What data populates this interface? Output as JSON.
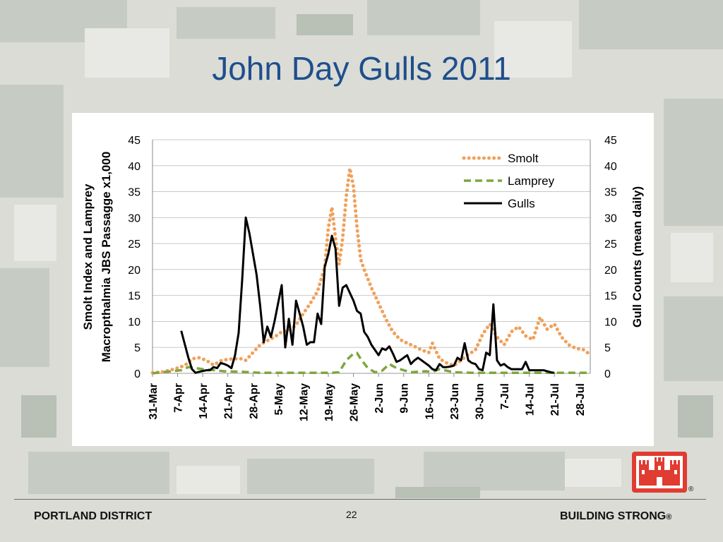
{
  "slide": {
    "title": "John Day Gulls 2011",
    "page_number": "22",
    "footer_left": "PORTLAND DISTRICT",
    "footer_right": "BUILDING STRONG",
    "registered_mark": "®",
    "logo_icon": "castle-icon",
    "colors": {
      "title": "#1f4e8c",
      "logo": "#e03c31"
    }
  },
  "chart_data": {
    "type": "line",
    "title": "",
    "ylabel_left_line1": "Smolt Index  and Lamprey",
    "ylabel_left_line2": "Macropthalmia JBS Passagge x1,000",
    "ylabel_right": "Gull Counts (mean daily)",
    "xlabel": "",
    "x_tick_labels": [
      "31-Mar",
      "7-Apr",
      "14-Apr",
      "21-Apr",
      "28-Apr",
      "5-May",
      "12-May",
      "19-May",
      "26-May",
      "2-Jun",
      "9-Jun",
      "16-Jun",
      "23-Jun",
      "30-Jun",
      "7-Jul",
      "14-Jul",
      "21-Jul",
      "28-Jul"
    ],
    "y_left_ticks": [
      0,
      5,
      10,
      15,
      20,
      25,
      30,
      35,
      40,
      45
    ],
    "y_right_ticks": [
      0,
      5,
      10,
      15,
      20,
      25,
      30,
      35,
      40,
      45
    ],
    "ylim_left": [
      0,
      45
    ],
    "ylim_right": [
      0,
      45
    ],
    "x_axis": "day index, 0 = 31-Mar",
    "xlim": [
      0,
      122
    ],
    "grid": true,
    "legend_position": "top-right",
    "series": [
      {
        "name": "Smolt",
        "axis": "left",
        "style": "dotted",
        "color": "#f0a15b",
        "points": [
          [
            0,
            0.1
          ],
          [
            3,
            0.3
          ],
          [
            6,
            0.8
          ],
          [
            9,
            1.5
          ],
          [
            11,
            2.8
          ],
          [
            13,
            3.0
          ],
          [
            15,
            2.5
          ],
          [
            17,
            1.6
          ],
          [
            19,
            2.4
          ],
          [
            21,
            2.7
          ],
          [
            23,
            2.8
          ],
          [
            25,
            2.8
          ],
          [
            26,
            2.5
          ],
          [
            28,
            4.0
          ],
          [
            30,
            5.5
          ],
          [
            32,
            6.3
          ],
          [
            34,
            7.0
          ],
          [
            36,
            8.0
          ],
          [
            38,
            8.2
          ],
          [
            40,
            9.3
          ],
          [
            42,
            11.5
          ],
          [
            44,
            13.5
          ],
          [
            46,
            15.8
          ],
          [
            48,
            20.5
          ],
          [
            49,
            28.0
          ],
          [
            50,
            32.0
          ],
          [
            51,
            26.0
          ],
          [
            52,
            21.0
          ],
          [
            53,
            26.0
          ],
          [
            54,
            34.0
          ],
          [
            55,
            39.5
          ],
          [
            56,
            36.0
          ],
          [
            57,
            28.0
          ],
          [
            58,
            22.0
          ],
          [
            59,
            20.0
          ],
          [
            61,
            16.5
          ],
          [
            63,
            13.5
          ],
          [
            65,
            10.5
          ],
          [
            67,
            8.0
          ],
          [
            69,
            6.5
          ],
          [
            71,
            5.8
          ],
          [
            73,
            5.2
          ],
          [
            75,
            4.5
          ],
          [
            77,
            4.0
          ],
          [
            78,
            5.8
          ],
          [
            80,
            2.8
          ],
          [
            82,
            2.0
          ],
          [
            84,
            1.5
          ],
          [
            86,
            2.5
          ],
          [
            88,
            3.6
          ],
          [
            90,
            4.5
          ],
          [
            92,
            7.5
          ],
          [
            94,
            9.5
          ],
          [
            96,
            7.0
          ],
          [
            98,
            5.5
          ],
          [
            100,
            8.0
          ],
          [
            102,
            9.0
          ],
          [
            104,
            7.2
          ],
          [
            106,
            6.5
          ],
          [
            108,
            10.8
          ],
          [
            110,
            8.5
          ],
          [
            112,
            9.5
          ],
          [
            114,
            7.0
          ],
          [
            116,
            5.5
          ],
          [
            118,
            4.8
          ],
          [
            120,
            4.6
          ],
          [
            122,
            3.6
          ]
        ]
      },
      {
        "name": "Lamprey",
        "axis": "left",
        "style": "dashed",
        "color": "#7ea63e",
        "points": [
          [
            0,
            0
          ],
          [
            4,
            0.3
          ],
          [
            8,
            0.6
          ],
          [
            10,
            1.2
          ],
          [
            12,
            1.0
          ],
          [
            14,
            0.8
          ],
          [
            16,
            0.7
          ],
          [
            20,
            0.4
          ],
          [
            25,
            0.3
          ],
          [
            30,
            0.1
          ],
          [
            40,
            0.1
          ],
          [
            50,
            0.1
          ],
          [
            52,
            0.2
          ],
          [
            54,
            2.5
          ],
          [
            56,
            3.8
          ],
          [
            57,
            3.9
          ],
          [
            58,
            2.8
          ],
          [
            60,
            1.0
          ],
          [
            62,
            0.2
          ],
          [
            64,
            0.5
          ],
          [
            66,
            1.8
          ],
          [
            68,
            1.0
          ],
          [
            70,
            0.6
          ],
          [
            72,
            0.2
          ],
          [
            76,
            0.4
          ],
          [
            78,
            0.3
          ],
          [
            80,
            0.8
          ],
          [
            84,
            0.2
          ],
          [
            90,
            0.1
          ],
          [
            100,
            0.1
          ],
          [
            110,
            0.1
          ],
          [
            122,
            0.1
          ]
        ]
      },
      {
        "name": "Gulls",
        "axis": "right",
        "style": "solid",
        "color": "#000000",
        "points": [
          [
            8,
            8.2
          ],
          [
            10,
            3.0
          ],
          [
            11,
            0.8
          ],
          [
            12,
            0.1
          ],
          [
            13,
            0.3
          ],
          [
            15,
            0.6
          ],
          [
            16,
            0.6
          ],
          [
            17,
            1.2
          ],
          [
            18,
            1.0
          ],
          [
            19,
            2.0
          ],
          [
            20,
            1.8
          ],
          [
            21,
            1.5
          ],
          [
            22,
            1.0
          ],
          [
            23,
            3.5
          ],
          [
            24,
            7.8
          ],
          [
            25,
            18.0
          ],
          [
            26,
            30.0
          ],
          [
            27,
            27.0
          ],
          [
            28,
            23.0
          ],
          [
            29,
            19.0
          ],
          [
            30,
            13.0
          ],
          [
            31,
            6.0
          ],
          [
            32,
            9.0
          ],
          [
            33,
            7.0
          ],
          [
            34,
            10.0
          ],
          [
            35,
            13.5
          ],
          [
            36,
            17.0
          ],
          [
            37,
            5.0
          ],
          [
            38,
            10.5
          ],
          [
            39,
            5.5
          ],
          [
            40,
            14.0
          ],
          [
            41,
            11.5
          ],
          [
            42,
            9.0
          ],
          [
            43,
            5.5
          ],
          [
            44,
            6.0
          ],
          [
            45,
            6.0
          ],
          [
            46,
            11.5
          ],
          [
            47,
            9.5
          ],
          [
            48,
            20.5
          ],
          [
            49,
            23.0
          ],
          [
            50,
            26.5
          ],
          [
            51,
            24.0
          ],
          [
            52,
            13.0
          ],
          [
            53,
            16.5
          ],
          [
            54,
            17.0
          ],
          [
            55,
            15.5
          ],
          [
            56,
            14.0
          ],
          [
            57,
            12.0
          ],
          [
            58,
            11.5
          ],
          [
            59,
            8.0
          ],
          [
            60,
            7.0
          ],
          [
            61,
            5.5
          ],
          [
            62,
            4.5
          ],
          [
            63,
            3.5
          ],
          [
            64,
            4.8
          ],
          [
            65,
            4.5
          ],
          [
            66,
            5.2
          ],
          [
            67,
            3.8
          ],
          [
            68,
            2.2
          ],
          [
            69,
            2.5
          ],
          [
            70,
            3.0
          ],
          [
            71,
            3.5
          ],
          [
            72,
            1.8
          ],
          [
            73,
            2.5
          ],
          [
            74,
            3.0
          ],
          [
            75,
            2.5
          ],
          [
            76,
            2.0
          ],
          [
            77,
            1.5
          ],
          [
            78,
            0.8
          ],
          [
            79,
            0.6
          ],
          [
            80,
            1.8
          ],
          [
            81,
            1.2
          ],
          [
            82,
            1.2
          ],
          [
            83,
            1.3
          ],
          [
            84,
            1.5
          ],
          [
            85,
            3.0
          ],
          [
            86,
            2.5
          ],
          [
            87,
            5.8
          ],
          [
            88,
            2.5
          ],
          [
            89,
            2.0
          ],
          [
            90,
            1.8
          ],
          [
            91,
            0.8
          ],
          [
            92,
            0.6
          ],
          [
            93,
            4.0
          ],
          [
            94,
            3.5
          ],
          [
            95,
            13.3
          ],
          [
            96,
            2.5
          ],
          [
            97,
            1.5
          ],
          [
            98,
            1.8
          ],
          [
            99,
            1.2
          ],
          [
            100,
            0.8
          ],
          [
            101,
            0.8
          ],
          [
            102,
            0.8
          ],
          [
            103,
            0.8
          ],
          [
            104,
            2.2
          ],
          [
            105,
            0.6
          ],
          [
            106,
            0.6
          ],
          [
            107,
            0.6
          ],
          [
            108,
            0.6
          ],
          [
            109,
            0.6
          ],
          [
            110,
            0.4
          ],
          [
            111,
            0.2
          ],
          [
            112,
            0.1
          ]
        ]
      }
    ]
  }
}
